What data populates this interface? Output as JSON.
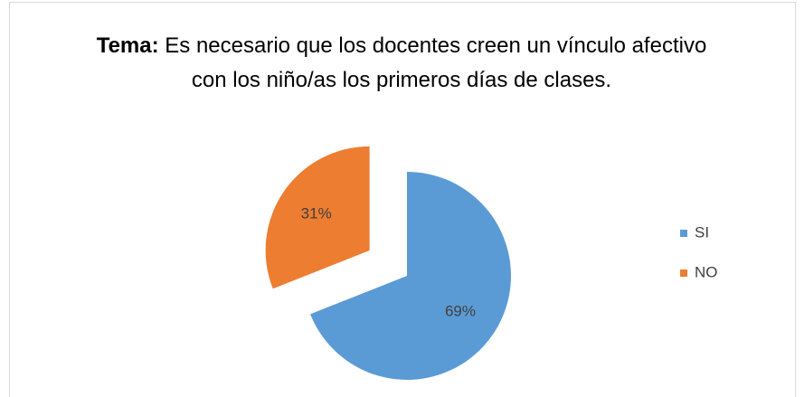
{
  "chart_data": {
    "type": "pie",
    "title_prefix": "Tema:",
    "title": "Es necesario que los docentes creen un vínculo afectivo con los niño/as los primeros días de clases.",
    "categories": [
      "SI",
      "NO"
    ],
    "values": [
      69,
      31
    ],
    "value_labels": [
      "69%",
      "31%"
    ],
    "colors": [
      "#5b9bd5",
      "#ed7d31"
    ],
    "legend": "right"
  }
}
